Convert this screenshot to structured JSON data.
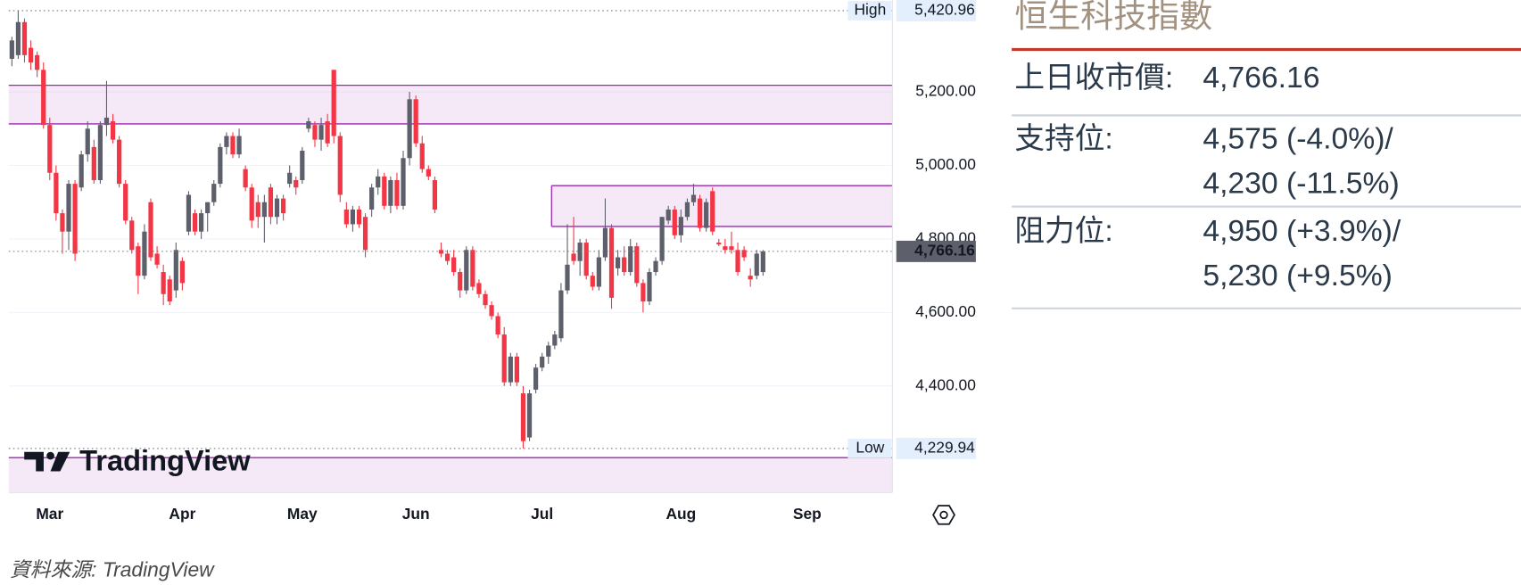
{
  "chart_data": {
    "type": "candlestick",
    "categories": [
      null,
      null,
      null,
      null,
      null,
      null,
      "Mar",
      null,
      null,
      null,
      null,
      null,
      null,
      null,
      null,
      null,
      null,
      null,
      null,
      null,
      null,
      null,
      null,
      null,
      null,
      null,
      null,
      "Apr",
      null,
      null,
      null,
      null,
      null,
      null,
      null,
      null,
      null,
      null,
      null,
      null,
      null,
      null,
      null,
      null,
      null,
      null,
      "May",
      null,
      null,
      null,
      null,
      null,
      null,
      null,
      null,
      null,
      null,
      null,
      null,
      null,
      null,
      null,
      null,
      null,
      "Jun",
      null,
      null,
      null,
      null,
      null,
      null,
      null,
      null,
      null,
      null,
      null,
      null,
      null,
      null,
      null,
      null,
      null,
      null,
      null,
      "Jul",
      null,
      null,
      null,
      null,
      null,
      null,
      null,
      null,
      null,
      null,
      null,
      null,
      null,
      null,
      null,
      null,
      null,
      null,
      null,
      null,
      null,
      "Aug",
      null,
      null,
      null,
      null,
      null,
      null,
      null,
      null,
      null,
      null,
      null,
      null,
      null,
      null,
      null,
      null,
      null,
      null,
      null,
      "Sep",
      null,
      null,
      null,
      null,
      null,
      null,
      null,
      null,
      null,
      null,
      null,
      null,
      null
    ],
    "open": [
      5290,
      5300,
      5390,
      5320,
      5300,
      5260,
      5110,
      4980,
      4870,
      4820,
      4950,
      4940,
      5030,
      5050,
      4960,
      5110,
      5120,
      5070,
      4950,
      4850,
      4780,
      4700,
      4900,
      4760,
      4710,
      4690,
      4660,
      4740,
      4820,
      4870,
      4820,
      4870,
      4900,
      4950,
      5050,
      5080,
      5030,
      4990,
      4940,
      4900,
      4860,
      4940,
      4860,
      4910,
      4950,
      4960,
      4960,
      5100,
      5110,
      5070,
      5120,
      5260,
      5080,
      4880,
      4840,
      4880,
      4860,
      4880,
      4940,
      4970,
      4890,
      4960,
      4890,
      5020,
      5180,
      5060,
      4990,
      4960,
      4770,
      4760,
      4750,
      4710,
      4660,
      4770,
      4680,
      4650,
      4620,
      4590,
      4540,
      4410,
      4480,
      4380,
      4260,
      4390,
      4450,
      4480,
      4510,
      4530,
      4660,
      4760,
      4740,
      4790,
      4700,
      4670,
      4750,
      4830,
      4720,
      4750,
      4710,
      4780,
      4680,
      4630,
      4710,
      4740,
      4850,
      4880,
      4810,
      4860,
      4900,
      4910,
      4830,
      4930,
      4790,
      4780,
      4780,
      4770,
      4770,
      4700,
      4700,
      4710,
      null,
      null,
      null,
      null,
      null,
      null,
      null,
      null,
      null,
      null,
      null,
      null,
      null,
      null,
      null,
      null,
      null,
      null,
      null,
      null
    ],
    "high": [
      5350,
      5420.96,
      5400,
      5340,
      5310,
      5280,
      5130,
      5000,
      4880,
      4960,
      4960,
      5040,
      5120,
      5070,
      5120,
      5230,
      5140,
      5080,
      4960,
      4860,
      4790,
      4840,
      4910,
      4780,
      4730,
      4700,
      4790,
      4750,
      4930,
      4880,
      4880,
      4900,
      4960,
      5060,
      5090,
      5090,
      5100,
      5000,
      4950,
      4920,
      4920,
      4950,
      4920,
      4920,
      5000,
      4970,
      5050,
      5130,
      5120,
      5130,
      5140,
      5260,
      5090,
      4900,
      4890,
      4890,
      4870,
      4950,
      4990,
      4980,
      4970,
      4980,
      5040,
      5200,
      5190,
      5080,
      5000,
      4970,
      4790,
      4770,
      4770,
      4720,
      4780,
      4780,
      4690,
      4660,
      4630,
      4600,
      4560,
      4490,
      4490,
      4400,
      4390,
      4460,
      4490,
      4520,
      4550,
      4680,
      4840,
      4860,
      4800,
      4800,
      4710,
      4770,
      4910,
      4840,
      4770,
      4780,
      4800,
      4790,
      4690,
      4720,
      4750,
      4860,
      4890,
      4890,
      4880,
      4910,
      4950,
      4920,
      4910,
      4940,
      4800,
      4800,
      4820,
      4790,
      4780,
      4720,
      4770,
      4770,
      null,
      null,
      null,
      null,
      null,
      null,
      null,
      null,
      null,
      null,
      null,
      null,
      null,
      null,
      null,
      null,
      null,
      null,
      null,
      null
    ],
    "low": [
      5270,
      5290,
      5280,
      5260,
      5240,
      5100,
      4960,
      4850,
      4760,
      4770,
      4740,
      4930,
      5010,
      4950,
      4950,
      5080,
      5060,
      4940,
      4840,
      4760,
      4650,
      4690,
      4740,
      4720,
      4620,
      4620,
      4640,
      4660,
      4810,
      4810,
      4800,
      4820,
      4890,
      4940,
      5030,
      5020,
      5020,
      4930,
      4830,
      4830,
      4790,
      4840,
      4840,
      4850,
      4940,
      4920,
      4950,
      5090,
      5050,
      5040,
      5050,
      5060,
      4900,
      4830,
      4820,
      4830,
      4750,
      4860,
      4920,
      4880,
      4870,
      4880,
      4880,
      5000,
      5050,
      4980,
      4960,
      4870,
      4750,
      4730,
      4700,
      4640,
      4650,
      4660,
      4640,
      4610,
      4580,
      4530,
      4400,
      4400,
      4400,
      4229.94,
      4250,
      4380,
      4440,
      4460,
      4500,
      4520,
      4650,
      4730,
      4700,
      4690,
      4660,
      4660,
      4740,
      4610,
      4700,
      4700,
      4700,
      4670,
      4600,
      4620,
      4700,
      4730,
      4840,
      4800,
      4790,
      4850,
      4890,
      4820,
      4820,
      4810,
      4780,
      4760,
      4760,
      4700,
      4740,
      4670,
      4690,
      4700,
      null,
      null,
      null,
      null,
      null,
      null,
      null,
      null,
      null,
      null,
      null,
      null,
      null,
      null,
      null,
      null,
      null,
      null,
      null,
      null
    ],
    "close": [
      5340,
      5390,
      5300,
      5280,
      5260,
      5110,
      4980,
      4870,
      4820,
      4950,
      4760,
      5030,
      5100,
      4960,
      5110,
      5130,
      5070,
      4950,
      4850,
      4770,
      4700,
      4820,
      4750,
      4730,
      4650,
      4630,
      4770,
      4680,
      4920,
      4820,
      4870,
      4900,
      4950,
      5050,
      5080,
      5030,
      5080,
      4940,
      4850,
      4860,
      4900,
      4860,
      4910,
      4870,
      4980,
      4940,
      5040,
      5120,
      5070,
      5110,
      5060,
      5080,
      4920,
      4840,
      4880,
      4840,
      4770,
      4940,
      4970,
      4890,
      4960,
      4890,
      5020,
      5180,
      5060,
      4990,
      4970,
      4880,
      4760,
      4740,
      4710,
      4660,
      4770,
      4670,
      4650,
      4620,
      4590,
      4540,
      4410,
      4480,
      4410,
      4250,
      4380,
      4450,
      4480,
      4510,
      4540,
      4660,
      4730,
      4740,
      4790,
      4700,
      4670,
      4750,
      4830,
      4640,
      4750,
      4710,
      4780,
      4680,
      4630,
      4710,
      4740,
      4860,
      4880,
      4810,
      4860,
      4900,
      4920,
      4830,
      4900,
      4820,
      4785,
      4770,
      4770,
      4710,
      4750,
      4690,
      4760,
      4766.16,
      null,
      null,
      null,
      null,
      null,
      null,
      null,
      null,
      null,
      null,
      null,
      null,
      null,
      null,
      null,
      null,
      null,
      null,
      null,
      null
    ],
    "up_color": "#5d606b",
    "down_color": "#f23645",
    "ylim": [
      4110,
      5450
    ],
    "yticks": [
      {
        "value": 4400,
        "label": "4,400.00"
      },
      {
        "value": 4600,
        "label": "4,600.00"
      },
      {
        "value": 4800,
        "label": "4,800.00"
      },
      {
        "value": 5000,
        "label": "5,000.00"
      },
      {
        "value": 5200,
        "label": "5,200.00"
      }
    ],
    "grid": true,
    "zone_color": "#9c27b0",
    "zones": [
      {
        "from": 5113,
        "to": 5218,
        "start": 0
      },
      {
        "from": 4834,
        "to": 4945,
        "start": 86
      },
      {
        "from": 4110,
        "to": 4205,
        "start": 0
      }
    ],
    "high_line": {
      "label": "High",
      "value": 5420.96,
      "value_label": "5,420.96"
    },
    "low_line": {
      "label": "Low",
      "value": 4229.94,
      "value_label": "4,229.94"
    },
    "last_price": {
      "value": 4766.16,
      "value_label": "4,766.16"
    }
  },
  "panel": {
    "title": "恒生科技指數",
    "rows": [
      {
        "label": "上日收市價:",
        "values": [
          "4,766.16"
        ]
      },
      {
        "label": "支持位:",
        "values": [
          "4,575 (-4.0%)/",
          "4,230 (-11.5%)"
        ]
      },
      {
        "label": "阻力位:",
        "values": [
          "4,950 (+3.9%)/",
          "5,230 (+9.5%)"
        ]
      }
    ]
  },
  "logo": "TradingView",
  "source": "資料來源: TradingView"
}
